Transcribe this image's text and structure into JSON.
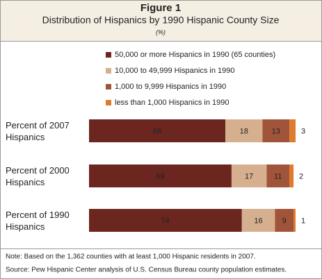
{
  "chart_data": {
    "type": "stacked-bar-horizontal",
    "title": "Figure 1",
    "subtitle": "Distribution of Hispanics by 1990 Hispanic County Size",
    "unit_note": "(%)",
    "categories": [
      "Percent of 2007 Hispanics",
      "Percent of 2000 Hispanics",
      "Percent of 1990 Hispanics"
    ],
    "series": [
      {
        "name": "50,000 or more Hispanics in 1990 (65 counties)",
        "color": "#6b2620",
        "values": [
          66,
          69,
          74
        ]
      },
      {
        "name": "10,000 to 49,999 Hispanics in 1990",
        "color": "#d6b08e",
        "values": [
          18,
          17,
          16
        ]
      },
      {
        "name": "1,000 to 9,999 Hispanics in 1990",
        "color": "#a0553a",
        "values": [
          13,
          11,
          9
        ]
      },
      {
        "name": "less than 1,000 Hispanics in 1990",
        "color": "#e07a2c",
        "values": [
          3,
          2,
          1
        ]
      }
    ],
    "xlim": [
      0,
      100
    ],
    "note": "Note: Based on the 1,362 counties with at least 1,000 Hispanic residents in 2007.",
    "source": "Source: Pew Hispanic Center analysis of U.S. Census Bureau county population estimates."
  }
}
